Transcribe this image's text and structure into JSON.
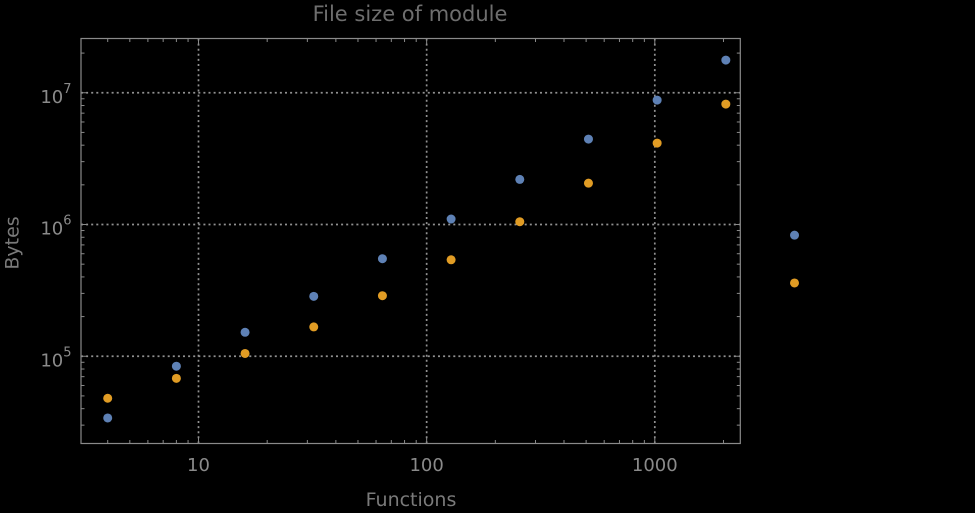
{
  "title": "File size of module",
  "chart_data": {
    "type": "scatter",
    "title": "File size of module",
    "xlabel": "Functions",
    "ylabel": "Bytes",
    "xscale": "log",
    "yscale": "log",
    "xlim": [
      3.1,
      2370
    ],
    "ylim": [
      22000,
      26000000
    ],
    "x_major_ticks": [
      10,
      100,
      1000
    ],
    "x_tick_labels": [
      "10",
      "100",
      "1000"
    ],
    "y_major_ticks": [
      100000,
      1000000,
      10000000
    ],
    "y_tick_labels": [
      {
        "base": "10",
        "exp": "5"
      },
      {
        "base": "10",
        "exp": "6"
      },
      {
        "base": "10",
        "exp": "7"
      }
    ],
    "grid": {
      "major": true,
      "minor": false,
      "style": "dotted"
    },
    "legend": "none",
    "series": [
      {
        "name": "series-1-blue",
        "color": "#5E81B5",
        "x": [
          4,
          8,
          16,
          32,
          64,
          128,
          256,
          512,
          1024,
          2048,
          4096
        ],
        "y": [
          34000,
          84000,
          152000,
          285000,
          550000,
          1100000,
          2200000,
          4450000,
          8800000,
          17700000,
          830000
        ]
      },
      {
        "name": "series-2-orange",
        "color": "#E19C24",
        "x": [
          4,
          8,
          16,
          32,
          64,
          128,
          256,
          512,
          1024,
          2048,
          4096
        ],
        "y": [
          48000,
          68000,
          105000,
          167000,
          288000,
          540000,
          1050000,
          2060000,
          4150000,
          8200000,
          360000
        ]
      }
    ]
  },
  "colors": {
    "background": "#000000",
    "frame": "#8a8a8a",
    "grid": "#919191",
    "tick_labels": "#8a8a8a",
    "axis_labels": "#7a7a7a",
    "title": "#6e6e6e"
  }
}
